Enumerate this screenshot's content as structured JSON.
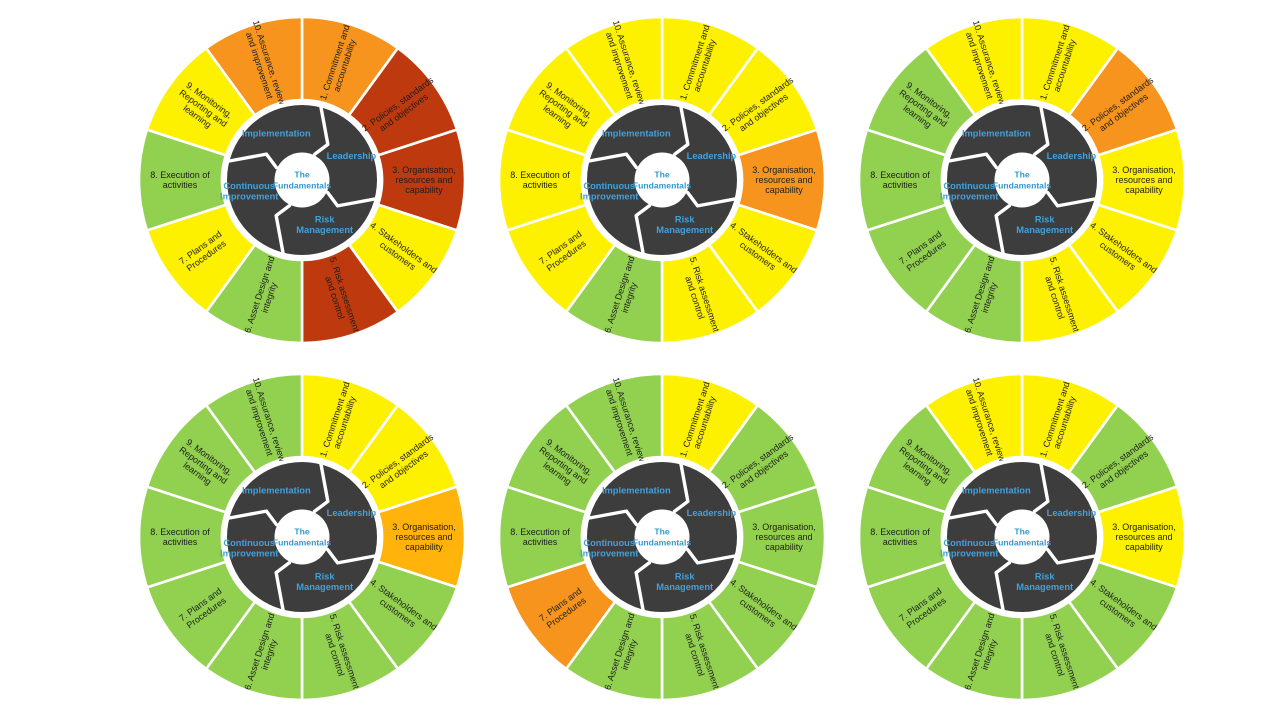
{
  "canvas": {
    "background": "#FFFFFF"
  },
  "palette": {
    "yellow": "#FDF100",
    "green": "#92D050",
    "orange": "#F6941E",
    "amber": "#FFB30B",
    "red": "#BE3A0E",
    "hub_dark": "#3D3D3D",
    "divider_white": "#FFFFFF",
    "inner_label_blue": "#41A1DC",
    "center_label_blue": "#2F9AD0",
    "segment_text": "#1D1D1D"
  },
  "wheel_common": {
    "center_label": "The Fundamentals",
    "center_label_lines": [
      "The",
      "Fundamentals"
    ],
    "inner_segments": [
      {
        "label": "Implementation",
        "lines": [
          "Implementation"
        ]
      },
      {
        "label": "Leadership",
        "lines": [
          "Leadership"
        ]
      },
      {
        "label": "Risk Management",
        "lines": [
          "Risk",
          "Management"
        ]
      },
      {
        "label": "Continuous Improvement",
        "lines": [
          "Continuous",
          "Improvement"
        ]
      }
    ],
    "outer_segments": [
      {
        "num": 1,
        "label": "1. Commitment and accountability",
        "lines": [
          "1. Commitment and",
          "accountability"
        ]
      },
      {
        "num": 2,
        "label": "2. Policies, standards and objectives",
        "lines": [
          "2. Policies, standards",
          "and objectives"
        ]
      },
      {
        "num": 3,
        "label": "3. Organisation, resources and capability",
        "lines": [
          "3. Organisation,",
          "resources and",
          "capability"
        ]
      },
      {
        "num": 4,
        "label": "4. Stakeholders and customers",
        "lines": [
          "4. Stakeholders and",
          "customers"
        ]
      },
      {
        "num": 5,
        "label": "5. Risk assessment and control",
        "lines": [
          "5. Risk assessment",
          "and control"
        ]
      },
      {
        "num": 6,
        "label": "6. Asset Design and integrity",
        "lines": [
          "6. Asset Design and",
          "integrity"
        ]
      },
      {
        "num": 7,
        "label": "7. Plans and Procedures",
        "lines": [
          "7. Plans and",
          "Procedures"
        ]
      },
      {
        "num": 8,
        "label": "8. Execution of activities",
        "lines": [
          "8. Execution of",
          "activities"
        ]
      },
      {
        "num": 9,
        "label": "9. Monitoring, Reporting and learning",
        "lines": [
          "9. Monitoring,",
          "Reporting and",
          "learning"
        ]
      },
      {
        "num": 10,
        "label": "10. Assurance, review and improvement",
        "lines": [
          "10. Assurance, review",
          "and improvement"
        ]
      }
    ]
  },
  "wheels": [
    {
      "id": "wheel-1",
      "grid": "row-1-col-1",
      "segment_colors": [
        "orange",
        "red",
        "red",
        "yellow",
        "red",
        "green",
        "yellow",
        "green",
        "yellow",
        "orange"
      ]
    },
    {
      "id": "wheel-2",
      "grid": "row-1-col-2",
      "segment_colors": [
        "yellow",
        "yellow",
        "orange",
        "yellow",
        "yellow",
        "green",
        "yellow",
        "yellow",
        "yellow",
        "yellow"
      ]
    },
    {
      "id": "wheel-3",
      "grid": "row-1-col-3",
      "segment_colors": [
        "yellow",
        "orange",
        "yellow",
        "yellow",
        "yellow",
        "green",
        "green",
        "green",
        "green",
        "yellow"
      ]
    },
    {
      "id": "wheel-4",
      "grid": "row-2-col-1",
      "segment_colors": [
        "yellow",
        "yellow",
        "amber",
        "green",
        "green",
        "green",
        "green",
        "green",
        "green",
        "green"
      ]
    },
    {
      "id": "wheel-5",
      "grid": "row-2-col-2",
      "segment_colors": [
        "yellow",
        "green",
        "green",
        "green",
        "green",
        "green",
        "orange",
        "green",
        "green",
        "green"
      ]
    },
    {
      "id": "wheel-6",
      "grid": "row-2-col-3",
      "segment_colors": [
        "yellow",
        "green",
        "yellow",
        "green",
        "green",
        "green",
        "green",
        "green",
        "green",
        "yellow"
      ]
    }
  ]
}
